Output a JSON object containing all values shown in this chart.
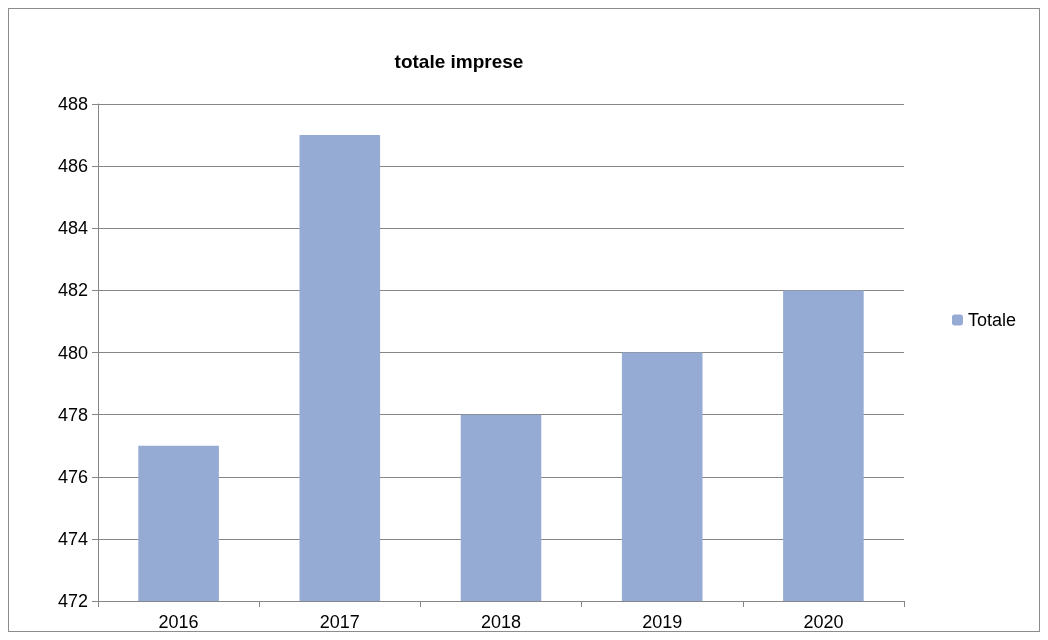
{
  "chart_data": {
    "type": "bar",
    "title": "totale imprese",
    "categories": [
      "2016",
      "2017",
      "2018",
      "2019",
      "2020"
    ],
    "series": [
      {
        "name": "Totale",
        "color": "#95abd3",
        "values": [
          477,
          487,
          478,
          480,
          482
        ]
      }
    ],
    "ylim": [
      472,
      488
    ],
    "yticks": [
      472,
      474,
      476,
      478,
      480,
      482,
      484,
      486,
      488
    ],
    "grid": "y",
    "legend": "right"
  }
}
